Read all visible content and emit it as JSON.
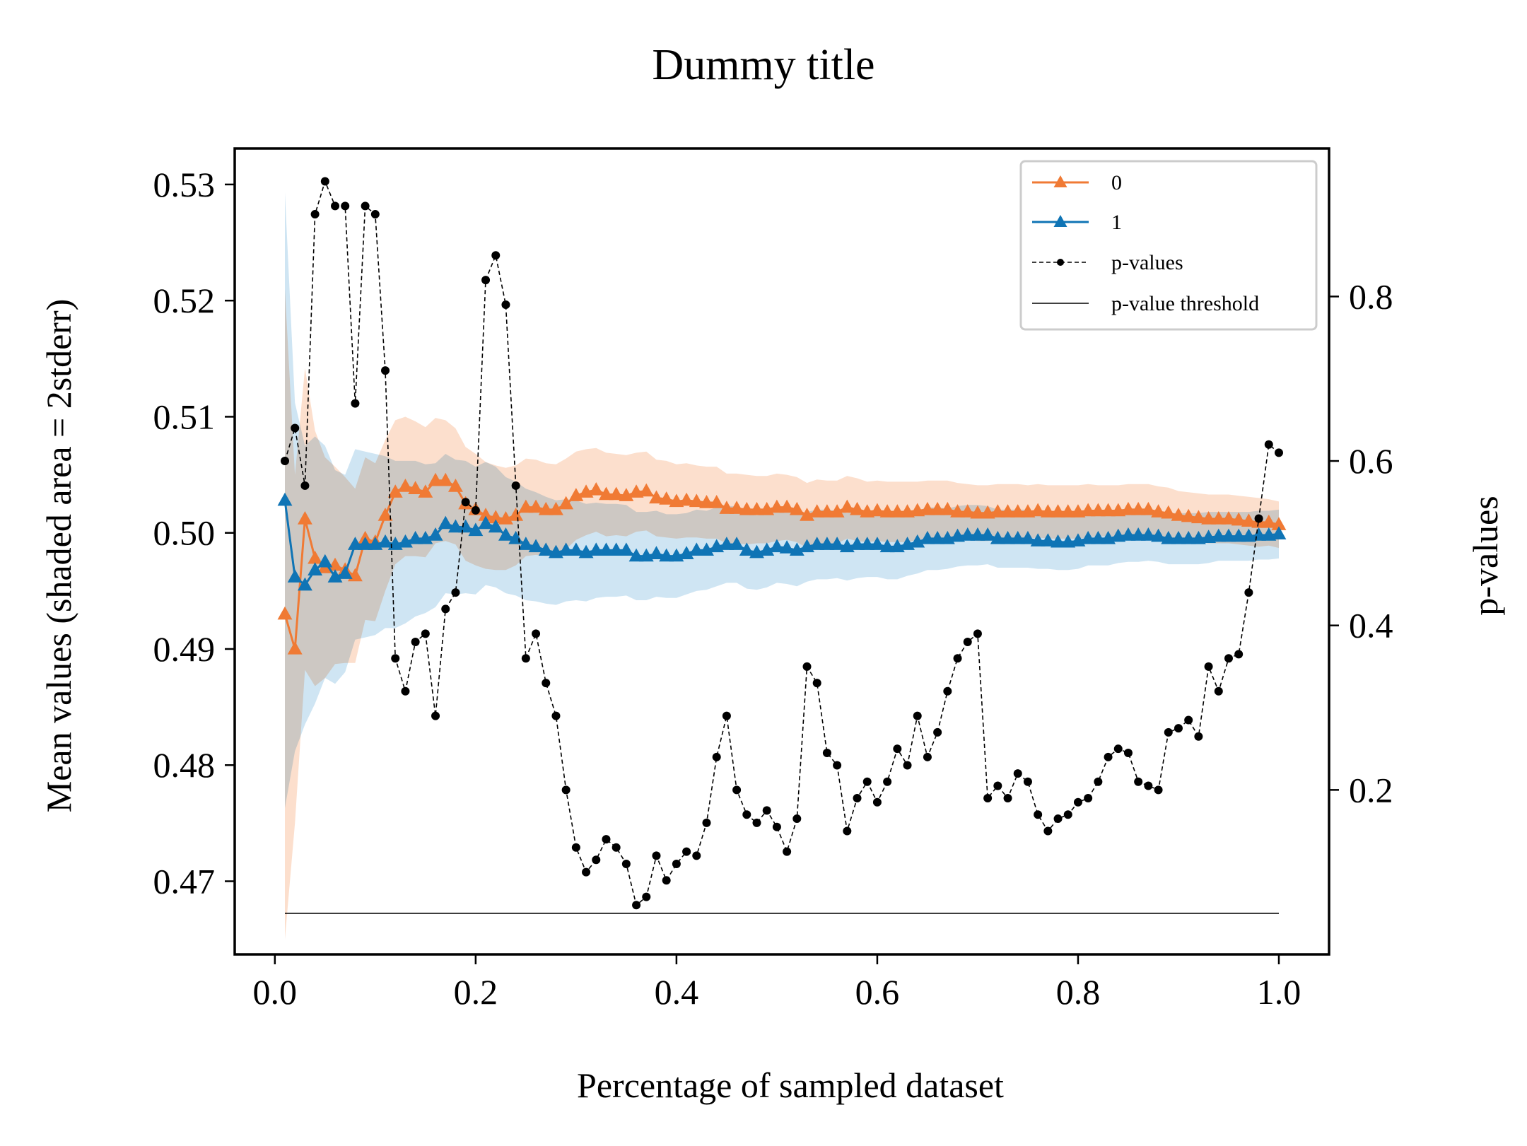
{
  "chart_data": {
    "type": "line",
    "title": "Dummy title",
    "xlabel": "Percentage of sampled dataset",
    "ylabel_left": "Mean values (shaded area = 2stderr)",
    "ylabel_right": "p-values",
    "xlim": [
      -0.04,
      1.05
    ],
    "ylim_left": [
      0.4637,
      0.5331
    ],
    "ylim_right": [
      0.0,
      0.98
    ],
    "x_ticks": [
      0.0,
      0.2,
      0.4,
      0.6,
      0.8,
      1.0
    ],
    "x_tick_labels": [
      "0.0",
      "0.2",
      "0.4",
      "0.6",
      "0.8",
      "1.0"
    ],
    "y_left_ticks": [
      0.47,
      0.48,
      0.49,
      0.5,
      0.51,
      0.52,
      0.53
    ],
    "y_left_tick_labels": [
      "0.47",
      "0.48",
      "0.49",
      "0.50",
      "0.51",
      "0.52",
      "0.53"
    ],
    "y_right_ticks": [
      0.2,
      0.4,
      0.6,
      0.8
    ],
    "y_right_tick_labels": [
      "0.2",
      "0.4",
      "0.6",
      "0.8"
    ],
    "legend_position": "top-right",
    "colors": {
      "series0": "#f07a34",
      "series1": "#0f74b5",
      "band0": "#fbd9c4",
      "band1": "#c7e1f1",
      "pvalues": "#000000",
      "threshold": "#000000"
    },
    "series": [
      {
        "name": "0",
        "axis": "left",
        "marker": "triangle",
        "x": [
          0.01,
          0.02,
          0.03,
          0.04,
          0.05,
          0.06,
          0.07,
          0.08,
          0.09,
          0.1,
          0.11,
          0.12,
          0.13,
          0.14,
          0.15,
          0.16,
          0.17,
          0.18,
          0.19,
          0.2,
          0.21,
          0.22,
          0.23,
          0.24,
          0.25,
          0.26,
          0.27,
          0.28,
          0.29,
          0.3,
          0.31,
          0.32,
          0.33,
          0.34,
          0.35,
          0.36,
          0.37,
          0.38,
          0.39,
          0.4,
          0.41,
          0.42,
          0.43,
          0.44,
          0.45,
          0.46,
          0.47,
          0.48,
          0.49,
          0.5,
          0.51,
          0.52,
          0.53,
          0.54,
          0.55,
          0.56,
          0.57,
          0.58,
          0.59,
          0.6,
          0.61,
          0.62,
          0.63,
          0.64,
          0.65,
          0.66,
          0.67,
          0.68,
          0.69,
          0.7,
          0.71,
          0.72,
          0.73,
          0.74,
          0.75,
          0.76,
          0.77,
          0.78,
          0.79,
          0.8,
          0.81,
          0.82,
          0.83,
          0.84,
          0.85,
          0.86,
          0.87,
          0.88,
          0.89,
          0.9,
          0.91,
          0.92,
          0.93,
          0.94,
          0.95,
          0.96,
          0.97,
          0.98,
          0.99,
          1.0
        ],
        "values": [
          0.493,
          0.49,
          0.5012,
          0.4978,
          0.497,
          0.4972,
          0.4968,
          0.4963,
          0.4995,
          0.4992,
          0.5015,
          0.5035,
          0.504,
          0.5038,
          0.5035,
          0.5045,
          0.5045,
          0.504,
          0.5025,
          0.502,
          0.5015,
          0.5013,
          0.5012,
          0.5015,
          0.5022,
          0.5022,
          0.502,
          0.502,
          0.5025,
          0.5032,
          0.5035,
          0.5037,
          0.5033,
          0.5033,
          0.5032,
          0.5035,
          0.5036,
          0.503,
          0.5029,
          0.5027,
          0.5028,
          0.5027,
          0.5026,
          0.5026,
          0.5021,
          0.5021,
          0.502,
          0.502,
          0.502,
          0.5022,
          0.5022,
          0.502,
          0.5015,
          0.5018,
          0.5018,
          0.5018,
          0.5022,
          0.502,
          0.5018,
          0.5019,
          0.5018,
          0.5018,
          0.5018,
          0.5019,
          0.502,
          0.502,
          0.502,
          0.5018,
          0.5018,
          0.5017,
          0.5017,
          0.5018,
          0.5018,
          0.5018,
          0.5018,
          0.5019,
          0.5018,
          0.5018,
          0.5018,
          0.5018,
          0.5019,
          0.5019,
          0.5019,
          0.5019,
          0.502,
          0.502,
          0.502,
          0.5018,
          0.5017,
          0.5015,
          0.5014,
          0.5013,
          0.5012,
          0.5012,
          0.5012,
          0.5011,
          0.501,
          0.5009,
          0.5009,
          0.5007
        ],
        "stderr2": [
          0.028,
          0.015,
          0.013,
          0.011,
          0.0095,
          0.0085,
          0.008,
          0.0075,
          0.007,
          0.0068,
          0.0065,
          0.0062,
          0.006,
          0.0058,
          0.0056,
          0.0054,
          0.0052,
          0.005,
          0.0049,
          0.0048,
          0.0046,
          0.0045,
          0.0044,
          0.0043,
          0.0042,
          0.0041,
          0.004,
          0.0039,
          0.0039,
          0.0038,
          0.0037,
          0.0036,
          0.0036,
          0.0035,
          0.0035,
          0.0034,
          0.0034,
          0.0033,
          0.0033,
          0.0032,
          0.0032,
          0.0031,
          0.0031,
          0.0031,
          0.003,
          0.003,
          0.003,
          0.0029,
          0.0029,
          0.0029,
          0.0028,
          0.0028,
          0.0028,
          0.0028,
          0.0027,
          0.0027,
          0.0027,
          0.0027,
          0.0026,
          0.0026,
          0.0026,
          0.0026,
          0.0026,
          0.0025,
          0.0025,
          0.0025,
          0.0025,
          0.0025,
          0.0024,
          0.0024,
          0.0024,
          0.0024,
          0.0024,
          0.0024,
          0.0023,
          0.0023,
          0.0023,
          0.0023,
          0.0023,
          0.0023,
          0.0023,
          0.0022,
          0.0022,
          0.0022,
          0.0022,
          0.0022,
          0.0022,
          0.0022,
          0.0022,
          0.0021,
          0.0021,
          0.0021,
          0.0021,
          0.0021,
          0.0021,
          0.0021,
          0.0021,
          0.0021,
          0.002,
          0.002
        ]
      },
      {
        "name": "1",
        "axis": "left",
        "marker": "triangle",
        "x": [
          0.01,
          0.02,
          0.03,
          0.04,
          0.05,
          0.06,
          0.07,
          0.08,
          0.09,
          0.1,
          0.11,
          0.12,
          0.13,
          0.14,
          0.15,
          0.16,
          0.17,
          0.18,
          0.19,
          0.2,
          0.21,
          0.22,
          0.23,
          0.24,
          0.25,
          0.26,
          0.27,
          0.28,
          0.29,
          0.3,
          0.31,
          0.32,
          0.33,
          0.34,
          0.35,
          0.36,
          0.37,
          0.38,
          0.39,
          0.4,
          0.41,
          0.42,
          0.43,
          0.44,
          0.45,
          0.46,
          0.47,
          0.48,
          0.49,
          0.5,
          0.51,
          0.52,
          0.53,
          0.54,
          0.55,
          0.56,
          0.57,
          0.58,
          0.59,
          0.6,
          0.61,
          0.62,
          0.63,
          0.64,
          0.65,
          0.66,
          0.67,
          0.68,
          0.69,
          0.7,
          0.71,
          0.72,
          0.73,
          0.74,
          0.75,
          0.76,
          0.77,
          0.78,
          0.79,
          0.8,
          0.81,
          0.82,
          0.83,
          0.84,
          0.85,
          0.86,
          0.87,
          0.88,
          0.89,
          0.9,
          0.91,
          0.92,
          0.93,
          0.94,
          0.95,
          0.96,
          0.97,
          0.98,
          0.99,
          1.0
        ],
        "values": [
          0.5028,
          0.4962,
          0.4955,
          0.4968,
          0.4975,
          0.4962,
          0.4965,
          0.499,
          0.499,
          0.499,
          0.4992,
          0.499,
          0.4992,
          0.4995,
          0.4995,
          0.4998,
          0.5008,
          0.5005,
          0.5005,
          0.5002,
          0.5008,
          0.5005,
          0.4998,
          0.4995,
          0.499,
          0.4988,
          0.4985,
          0.4983,
          0.4985,
          0.4985,
          0.4983,
          0.4985,
          0.4985,
          0.4985,
          0.4985,
          0.498,
          0.498,
          0.4982,
          0.498,
          0.498,
          0.4982,
          0.4985,
          0.4985,
          0.4988,
          0.499,
          0.499,
          0.4985,
          0.4983,
          0.4985,
          0.4988,
          0.4987,
          0.4985,
          0.4988,
          0.499,
          0.499,
          0.499,
          0.4988,
          0.499,
          0.499,
          0.499,
          0.4988,
          0.4988,
          0.499,
          0.4992,
          0.4995,
          0.4995,
          0.4995,
          0.4997,
          0.4998,
          0.4998,
          0.4998,
          0.4995,
          0.4995,
          0.4995,
          0.4995,
          0.4993,
          0.4993,
          0.4992,
          0.4992,
          0.4993,
          0.4995,
          0.4995,
          0.4995,
          0.4997,
          0.4998,
          0.4998,
          0.4998,
          0.4997,
          0.4995,
          0.4995,
          0.4995,
          0.4995,
          0.4996,
          0.4997,
          0.4997,
          0.4997,
          0.4997,
          0.4998,
          0.4998,
          0.4999
        ],
        "stderr2": [
          0.0265,
          0.015,
          0.012,
          0.0115,
          0.01,
          0.0092,
          0.0085,
          0.0082,
          0.008,
          0.0078,
          0.0074,
          0.0072,
          0.007,
          0.0067,
          0.0064,
          0.0062,
          0.006,
          0.0058,
          0.0057,
          0.0055,
          0.0053,
          0.0052,
          0.005,
          0.0049,
          0.0048,
          0.0047,
          0.0046,
          0.0045,
          0.0044,
          0.0043,
          0.0042,
          0.0041,
          0.004,
          0.004,
          0.0039,
          0.0038,
          0.0038,
          0.0037,
          0.0036,
          0.0036,
          0.0035,
          0.0035,
          0.0034,
          0.0034,
          0.0033,
          0.0033,
          0.0033,
          0.0032,
          0.0032,
          0.0031,
          0.0031,
          0.0031,
          0.003,
          0.003,
          0.003,
          0.0029,
          0.0029,
          0.0029,
          0.0028,
          0.0028,
          0.0028,
          0.0028,
          0.0027,
          0.0027,
          0.0027,
          0.0027,
          0.0026,
          0.0026,
          0.0026,
          0.0026,
          0.0025,
          0.0025,
          0.0025,
          0.0025,
          0.0025,
          0.0024,
          0.0024,
          0.0024,
          0.0024,
          0.0024,
          0.0023,
          0.0023,
          0.0023,
          0.0023,
          0.0023,
          0.0023,
          0.0022,
          0.0022,
          0.0022,
          0.0022,
          0.0022,
          0.0022,
          0.0022,
          0.0021,
          0.0021,
          0.0021,
          0.0021,
          0.0021,
          0.0021,
          0.0021
        ]
      },
      {
        "name": "p-values",
        "axis": "right",
        "marker": "dot",
        "x": [
          0.01,
          0.02,
          0.03,
          0.04,
          0.05,
          0.06,
          0.07,
          0.08,
          0.09,
          0.1,
          0.11,
          0.12,
          0.13,
          0.14,
          0.15,
          0.16,
          0.17,
          0.18,
          0.19,
          0.2,
          0.21,
          0.22,
          0.23,
          0.24,
          0.25,
          0.26,
          0.27,
          0.28,
          0.29,
          0.3,
          0.31,
          0.32,
          0.33,
          0.34,
          0.35,
          0.36,
          0.37,
          0.38,
          0.39,
          0.4,
          0.41,
          0.42,
          0.43,
          0.44,
          0.45,
          0.46,
          0.47,
          0.48,
          0.49,
          0.5,
          0.51,
          0.52,
          0.53,
          0.54,
          0.55,
          0.56,
          0.57,
          0.58,
          0.59,
          0.6,
          0.61,
          0.62,
          0.63,
          0.64,
          0.65,
          0.66,
          0.67,
          0.68,
          0.69,
          0.7,
          0.71,
          0.72,
          0.73,
          0.74,
          0.75,
          0.76,
          0.77,
          0.78,
          0.79,
          0.8,
          0.81,
          0.82,
          0.83,
          0.84,
          0.85,
          0.86,
          0.87,
          0.88,
          0.89,
          0.9,
          0.91,
          0.92,
          0.93,
          0.94,
          0.95,
          0.96,
          0.97,
          0.98,
          0.99,
          1.0
        ],
        "values": [
          0.6,
          0.64,
          0.57,
          0.9,
          0.94,
          0.91,
          0.91,
          0.67,
          0.91,
          0.9,
          0.71,
          0.36,
          0.32,
          0.38,
          0.39,
          0.29,
          0.42,
          0.44,
          0.55,
          0.54,
          0.82,
          0.85,
          0.79,
          0.57,
          0.36,
          0.39,
          0.33,
          0.29,
          0.2,
          0.13,
          0.1,
          0.115,
          0.14,
          0.13,
          0.11,
          0.06,
          0.07,
          0.12,
          0.09,
          0.11,
          0.125,
          0.12,
          0.16,
          0.24,
          0.29,
          0.2,
          0.17,
          0.16,
          0.175,
          0.155,
          0.125,
          0.165,
          0.35,
          0.33,
          0.245,
          0.23,
          0.15,
          0.19,
          0.21,
          0.185,
          0.21,
          0.25,
          0.23,
          0.29,
          0.24,
          0.27,
          0.32,
          0.36,
          0.38,
          0.39,
          0.19,
          0.205,
          0.19,
          0.22,
          0.21,
          0.17,
          0.15,
          0.165,
          0.17,
          0.185,
          0.19,
          0.21,
          0.24,
          0.25,
          0.245,
          0.21,
          0.205,
          0.2,
          0.27,
          0.275,
          0.285,
          0.265,
          0.35,
          0.32,
          0.36,
          0.365,
          0.44,
          0.53,
          0.62,
          0.61
        ]
      },
      {
        "name": "p-value threshold",
        "axis": "right",
        "marker": "none",
        "x": [
          0.01,
          1.0
        ],
        "values": [
          0.05,
          0.05
        ]
      }
    ]
  }
}
